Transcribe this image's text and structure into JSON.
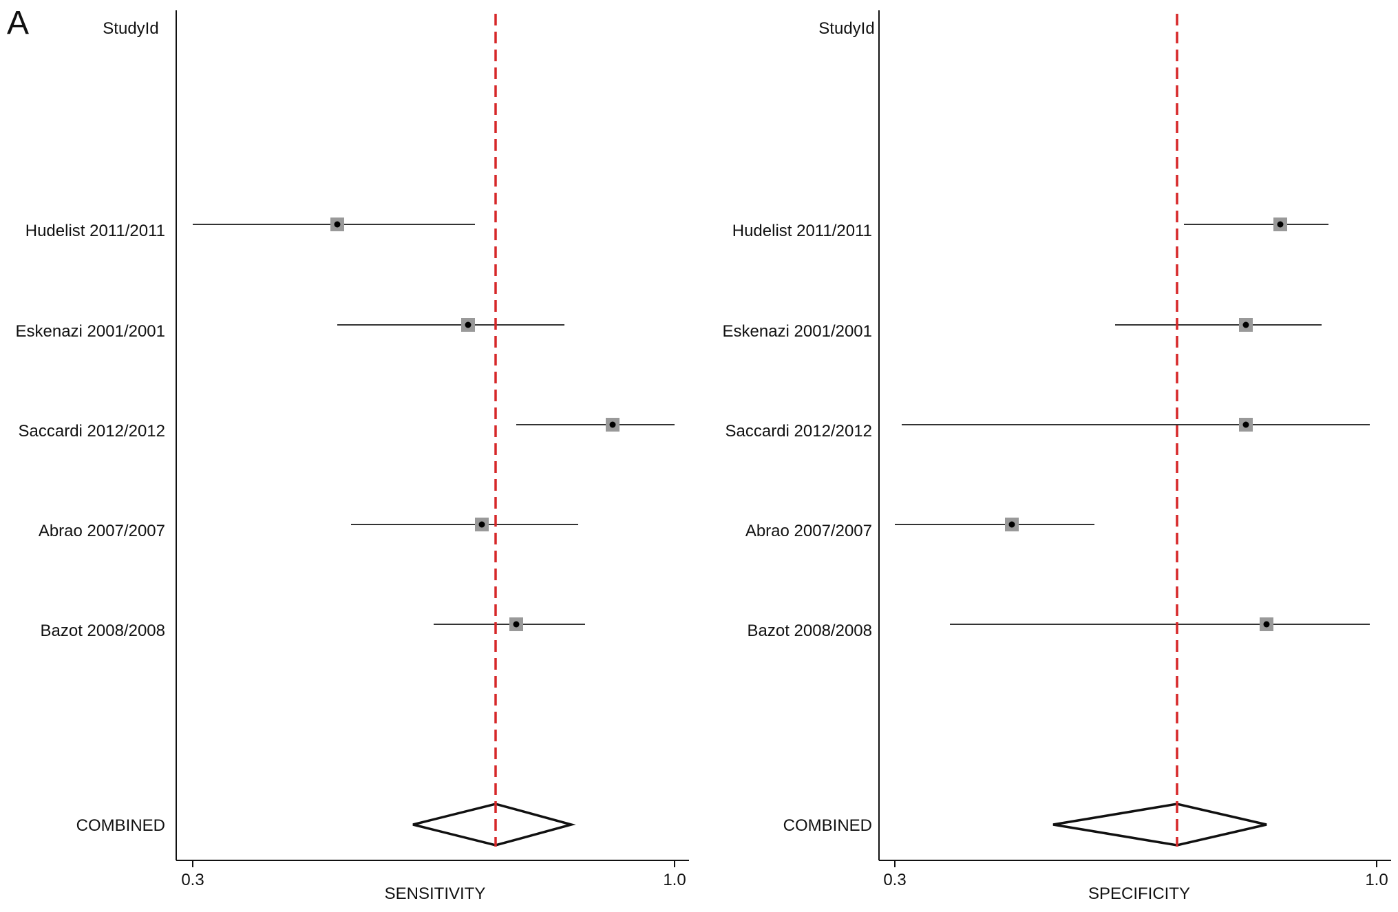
{
  "panel_label": "A",
  "chart_data": [
    {
      "type": "forest",
      "header": "StudyId",
      "xlabel": "SENSITIVITY",
      "xlim": [
        0.3,
        1.0
      ],
      "ticks": [
        "0.3",
        "1.0"
      ],
      "reference_value": 0.74,
      "studies": [
        {
          "label": "Hudelist 2011/2011",
          "estimate": 0.51,
          "ci_low": 0.3,
          "ci_high": 0.71
        },
        {
          "label": "Eskenazi 2001/2001",
          "estimate": 0.7,
          "ci_low": 0.51,
          "ci_high": 0.84
        },
        {
          "label": "Saccardi 2012/2012",
          "estimate": 0.91,
          "ci_low": 0.77,
          "ci_high": 1.0
        },
        {
          "label": "Abrao 2007/2007",
          "estimate": 0.72,
          "ci_low": 0.53,
          "ci_high": 0.86
        },
        {
          "label": "Bazot 2008/2008",
          "estimate": 0.77,
          "ci_low": 0.65,
          "ci_high": 0.87
        }
      ],
      "combined": {
        "label": "COMBINED",
        "estimate": 0.74,
        "ci_low": 0.62,
        "ci_high": 0.85
      }
    },
    {
      "type": "forest",
      "header": "StudyId",
      "xlabel": "SPECIFICITY",
      "xlim": [
        0.3,
        1.0
      ],
      "ticks": [
        "0.3",
        "1.0"
      ],
      "reference_value": 0.71,
      "studies": [
        {
          "label": "Hudelist 2011/2011",
          "estimate": 0.86,
          "ci_low": 0.72,
          "ci_high": 0.93
        },
        {
          "label": "Eskenazi 2001/2001",
          "estimate": 0.81,
          "ci_low": 0.62,
          "ci_high": 0.92
        },
        {
          "label": "Saccardi 2012/2012",
          "estimate": 0.81,
          "ci_low": 0.31,
          "ci_high": 0.99
        },
        {
          "label": "Abrao 2007/2007",
          "estimate": 0.47,
          "ci_low": 0.3,
          "ci_high": 0.59
        },
        {
          "label": "Bazot 2008/2008",
          "estimate": 0.84,
          "ci_low": 0.38,
          "ci_high": 0.99
        }
      ],
      "combined": {
        "label": "COMBINED",
        "estimate": 0.71,
        "ci_low": 0.53,
        "ci_high": 0.84
      }
    }
  ],
  "colors": {
    "reference_line": "#d62728",
    "square": "#999999",
    "dot": "#000000",
    "ink": "#111111"
  }
}
